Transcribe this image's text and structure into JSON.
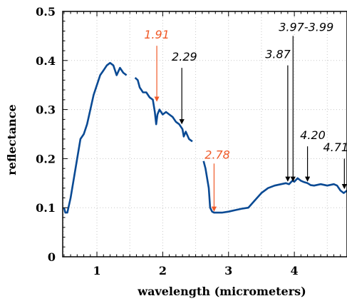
{
  "chart_data": {
    "type": "line",
    "xlabel": "wavelength (micrometers)",
    "ylabel": "reflectance",
    "xlim": [
      0.48,
      4.8
    ],
    "ylim": [
      0,
      0.5
    ],
    "x_ticks": [
      1,
      2,
      3,
      4
    ],
    "x_tick_labels": [
      "1",
      "2",
      "3",
      "4"
    ],
    "y_ticks": [
      0,
      0.1,
      0.2,
      0.3,
      0.4,
      0.5
    ],
    "y_tick_labels": [
      "0",
      "0.1",
      "0.2",
      "0.3",
      "0.4",
      "0.5"
    ],
    "grid": true,
    "line_color": "#0a4a94",
    "segments": [
      {
        "x": [
          0.5,
          0.52,
          0.55,
          0.6,
          0.65,
          0.7,
          0.75,
          0.8,
          0.85,
          0.9,
          0.95,
          1.0,
          1.05,
          1.1,
          1.15,
          1.2,
          1.25,
          1.3,
          1.35,
          1.4,
          1.45
        ],
        "y": [
          0.1,
          0.09,
          0.09,
          0.12,
          0.16,
          0.2,
          0.24,
          0.25,
          0.27,
          0.3,
          0.33,
          0.35,
          0.37,
          0.38,
          0.39,
          0.395,
          0.39,
          0.37,
          0.385,
          0.375,
          0.37
        ]
      },
      {
        "x": [
          1.58,
          1.62,
          1.65,
          1.7,
          1.75,
          1.8,
          1.85,
          1.88,
          1.9,
          1.92,
          1.95,
          2.0,
          2.05,
          2.1,
          2.15,
          2.2,
          2.25,
          2.3,
          2.32,
          2.35,
          2.4,
          2.45
        ],
        "y": [
          0.365,
          0.36,
          0.345,
          0.335,
          0.335,
          0.325,
          0.32,
          0.295,
          0.27,
          0.29,
          0.3,
          0.29,
          0.295,
          0.29,
          0.285,
          0.275,
          0.27,
          0.26,
          0.245,
          0.255,
          0.24,
          0.235
        ]
      },
      {
        "x": [
          2.62,
          2.65,
          2.7,
          2.72,
          2.75,
          2.78,
          2.8,
          2.85,
          2.9,
          3.0,
          3.1,
          3.2,
          3.3,
          3.4,
          3.5,
          3.6,
          3.7,
          3.8,
          3.87,
          3.92,
          3.97,
          4.0,
          4.05,
          4.1,
          4.15,
          4.2,
          4.25,
          4.3,
          4.4,
          4.5,
          4.6,
          4.65,
          4.7,
          4.75,
          4.8
        ],
        "y": [
          0.195,
          0.18,
          0.14,
          0.1,
          0.092,
          0.09,
          0.09,
          0.09,
          0.09,
          0.092,
          0.095,
          0.098,
          0.1,
          0.115,
          0.13,
          0.14,
          0.145,
          0.148,
          0.15,
          0.148,
          0.155,
          0.153,
          0.16,
          0.155,
          0.152,
          0.15,
          0.146,
          0.145,
          0.148,
          0.145,
          0.148,
          0.145,
          0.135,
          0.13,
          0.135
        ]
      }
    ],
    "annotations": [
      {
        "label": "1.91",
        "color": "#f05a28",
        "x": 1.91,
        "y_tip": 0.318,
        "y_tail": 0.43,
        "label_x": 1.91,
        "label_y": 0.445
      },
      {
        "label": "2.29",
        "color": "#000000",
        "x": 2.29,
        "y_tip": 0.272,
        "y_tail": 0.385,
        "label_x": 2.33,
        "label_y": 0.4
      },
      {
        "label": "2.78",
        "color": "#f05a28",
        "x": 2.78,
        "y_tip": 0.094,
        "y_tail": 0.19,
        "label_x": 2.83,
        "label_y": 0.2
      },
      {
        "label": "3.87",
        "color": "#000000",
        "x": 3.9,
        "y_tip": 0.155,
        "y_tail": 0.39,
        "label_x": 3.75,
        "label_y": 0.405
      },
      {
        "label": "3.97-3.99",
        "color": "#000000",
        "x": 3.98,
        "y_tip": 0.155,
        "y_tail": 0.45,
        "label_x": 4.18,
        "label_y": 0.46
      },
      {
        "label": "4.20",
        "color": "#000000",
        "x": 4.2,
        "y_tip": 0.155,
        "y_tail": 0.225,
        "label_x": 4.28,
        "label_y": 0.24
      },
      {
        "label": "4.71",
        "color": "#000000",
        "x": 4.76,
        "y_tip": 0.14,
        "y_tail": 0.2,
        "label_x": 4.63,
        "label_y": 0.215
      }
    ]
  }
}
